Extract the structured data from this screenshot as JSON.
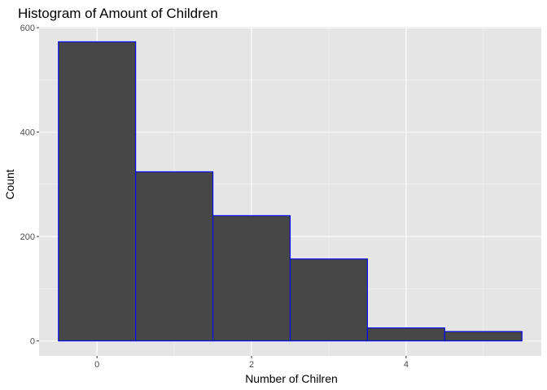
{
  "chart_data": {
    "type": "bar",
    "subtype": "histogram",
    "title": "Histogram of Amount of Children",
    "xlabel": "Number of Chilren",
    "ylabel": "Count",
    "bins": [
      {
        "from": -0.5,
        "to": 0.5,
        "value": 573
      },
      {
        "from": 0.5,
        "to": 1.5,
        "value": 324
      },
      {
        "from": 1.5,
        "to": 2.5,
        "value": 240
      },
      {
        "from": 2.5,
        "to": 3.5,
        "value": 157
      },
      {
        "from": 3.5,
        "to": 4.5,
        "value": 25
      },
      {
        "from": 4.5,
        "to": 5.5,
        "value": 18
      }
    ],
    "xlim": [
      -0.75,
      5.75
    ],
    "ylim": [
      -28.65,
      601.65
    ],
    "x_ticks": [
      0,
      2,
      4
    ],
    "x_tick_labels": [
      "0",
      "2",
      "4"
    ],
    "x_minor_ticks": [
      1,
      3,
      5
    ],
    "y_ticks": [
      0,
      200,
      400,
      600
    ],
    "y_tick_labels": [
      "0",
      "200",
      "400",
      "600"
    ],
    "y_minor_ticks": [
      100,
      300,
      500
    ],
    "grid": true,
    "colors": {
      "panel_background": "#e5e5e5",
      "grid_major": "#ffffff",
      "grid_minor": "#f2f2f2",
      "bar_fill": "#474747",
      "bar_outline": "#0000ff",
      "tick_label": "#4d4d4d",
      "tick_mark": "#333333"
    }
  }
}
